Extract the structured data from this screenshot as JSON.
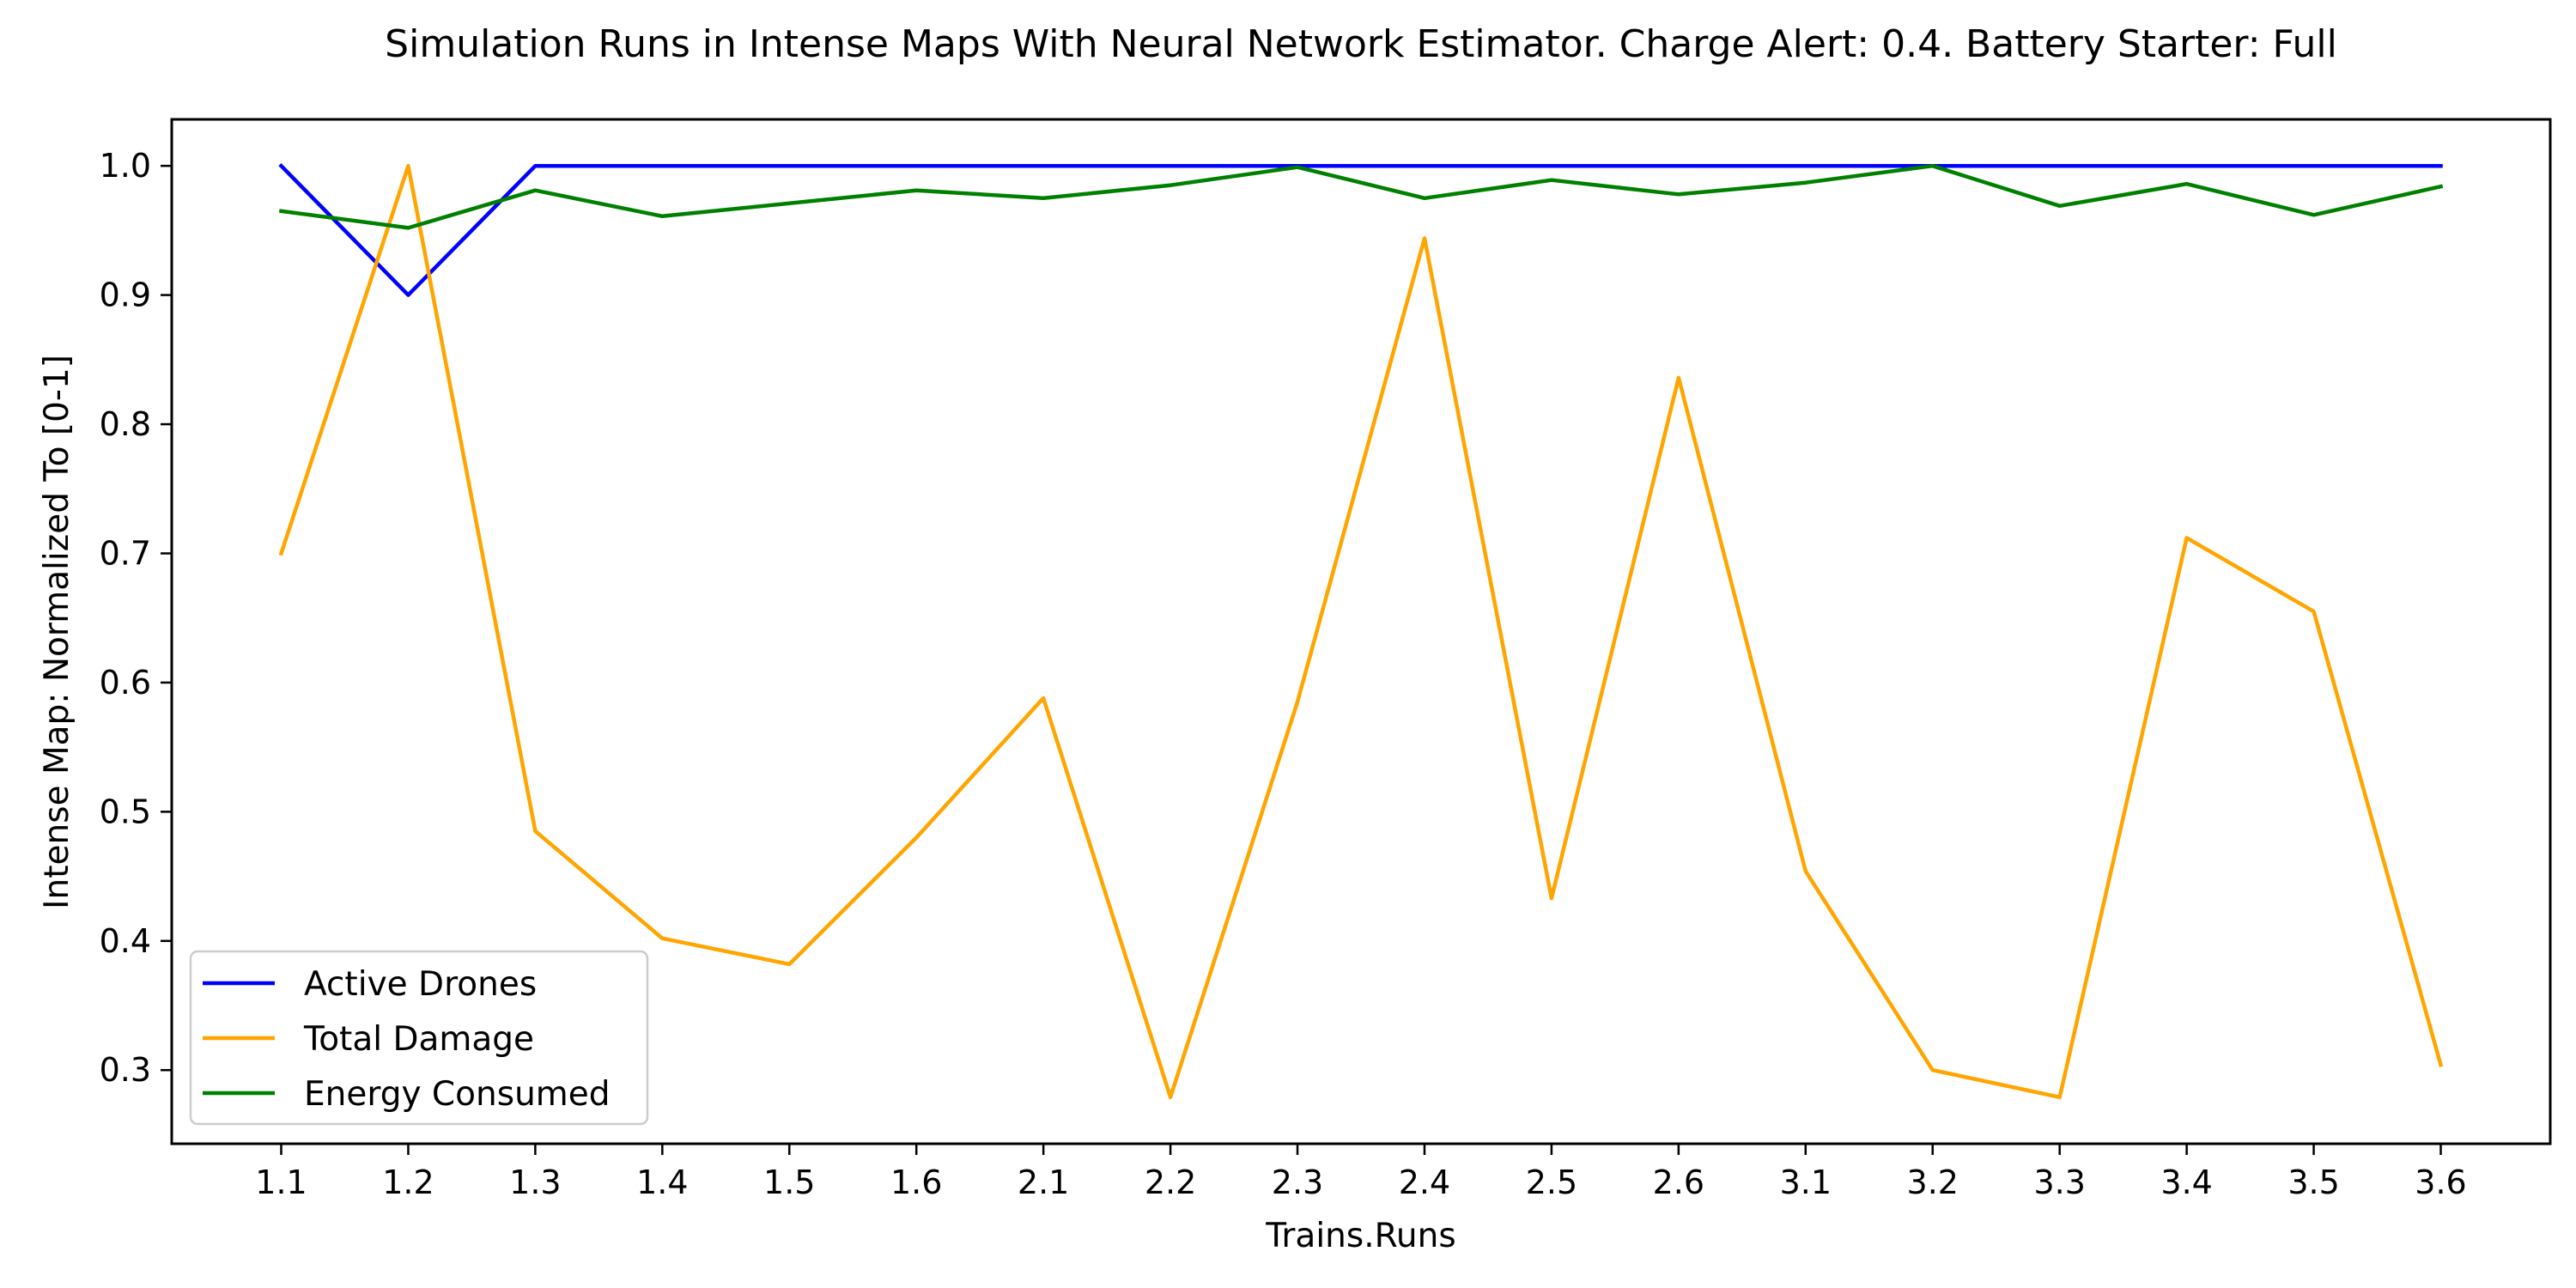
{
  "chart_data": {
    "type": "line",
    "title": "Simulation Runs in Intense Maps With Neural Network Estimator. Charge Alert: 0.4. Battery Starter: Full",
    "xlabel": "Trains.Runs",
    "ylabel": "Intense Map: Normalized To [0-1]",
    "categories": [
      "1.1",
      "1.2",
      "1.3",
      "1.4",
      "1.5",
      "1.6",
      "2.1",
      "2.2",
      "2.3",
      "2.4",
      "2.5",
      "2.6",
      "3.1",
      "3.2",
      "3.3",
      "3.4",
      "3.5",
      "3.6"
    ],
    "yticks": [
      "0.3",
      "0.4",
      "0.5",
      "0.6",
      "0.7",
      "0.8",
      "0.9",
      "1.0"
    ],
    "ylim": [
      0.243,
      1.036
    ],
    "grid": false,
    "legend_position": "lower-left",
    "series": [
      {
        "name": "Active Drones",
        "color": "#0000ff",
        "values": [
          1.0,
          0.9,
          1.0,
          1.0,
          1.0,
          1.0,
          1.0,
          1.0,
          1.0,
          1.0,
          1.0,
          1.0,
          1.0,
          1.0,
          1.0,
          1.0,
          1.0,
          1.0
        ]
      },
      {
        "name": "Total Damage",
        "color": "#ffa500",
        "values": [
          0.7,
          1.0,
          0.485,
          0.402,
          0.382,
          0.48,
          0.588,
          0.279,
          0.585,
          0.944,
          0.433,
          0.836,
          0.454,
          0.3,
          0.279,
          0.712,
          0.655,
          0.304
        ]
      },
      {
        "name": "Energy Consumed",
        "color": "#008000",
        "values": [
          0.965,
          0.952,
          0.981,
          0.961,
          0.971,
          0.981,
          0.975,
          0.985,
          0.999,
          0.975,
          0.989,
          0.978,
          0.987,
          1.0,
          0.969,
          0.986,
          0.962,
          0.984
        ]
      }
    ]
  }
}
